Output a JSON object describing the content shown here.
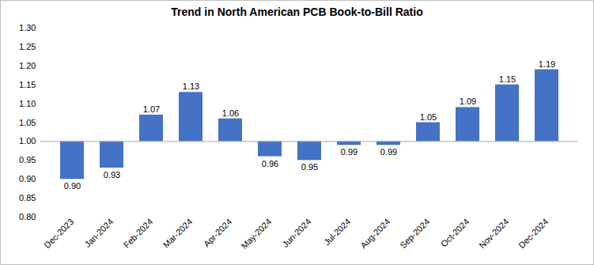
{
  "chart_data": {
    "type": "bar",
    "title": "Trend in North American PCB Book-to-Bill Ratio",
    "categories": [
      "Dec-2023",
      "Jan-2024",
      "Feb-2024",
      "Mar-2024",
      "Apr-2024",
      "May-2024",
      "Jun-2024",
      "Jul-2024",
      "Aug-2024",
      "Sep-2024",
      "Oct-2024",
      "Nov-2024",
      "Dec-2024"
    ],
    "values": [
      0.9,
      0.93,
      1.07,
      1.13,
      1.06,
      0.96,
      0.95,
      0.99,
      0.99,
      1.05,
      1.09,
      1.15,
      1.19
    ],
    "value_labels": [
      "0.90",
      "0.93",
      "1.07",
      "1.13",
      "1.06",
      "0.96",
      "0.95",
      "0.99",
      "0.99",
      "1.05",
      "1.09",
      "1.15",
      "1.19"
    ],
    "baseline": 1.0,
    "color": "#4472c4",
    "ylim": [
      0.8,
      1.3
    ],
    "yticks": [
      {
        "value": 0.8,
        "label": "0.80"
      },
      {
        "value": 0.85,
        "label": "0.85"
      },
      {
        "value": 0.9,
        "label": "0.90"
      },
      {
        "value": 0.95,
        "label": "0.95"
      },
      {
        "value": 1.0,
        "label": "1.00"
      },
      {
        "value": 1.05,
        "label": "1.05"
      },
      {
        "value": 1.1,
        "label": "1.10"
      },
      {
        "value": 1.15,
        "label": "1.15"
      },
      {
        "value": 1.2,
        "label": "1.20"
      },
      {
        "value": 1.25,
        "label": "1.25"
      },
      {
        "value": 1.3,
        "label": "1.30"
      }
    ],
    "grid": false,
    "data_labels": true
  }
}
